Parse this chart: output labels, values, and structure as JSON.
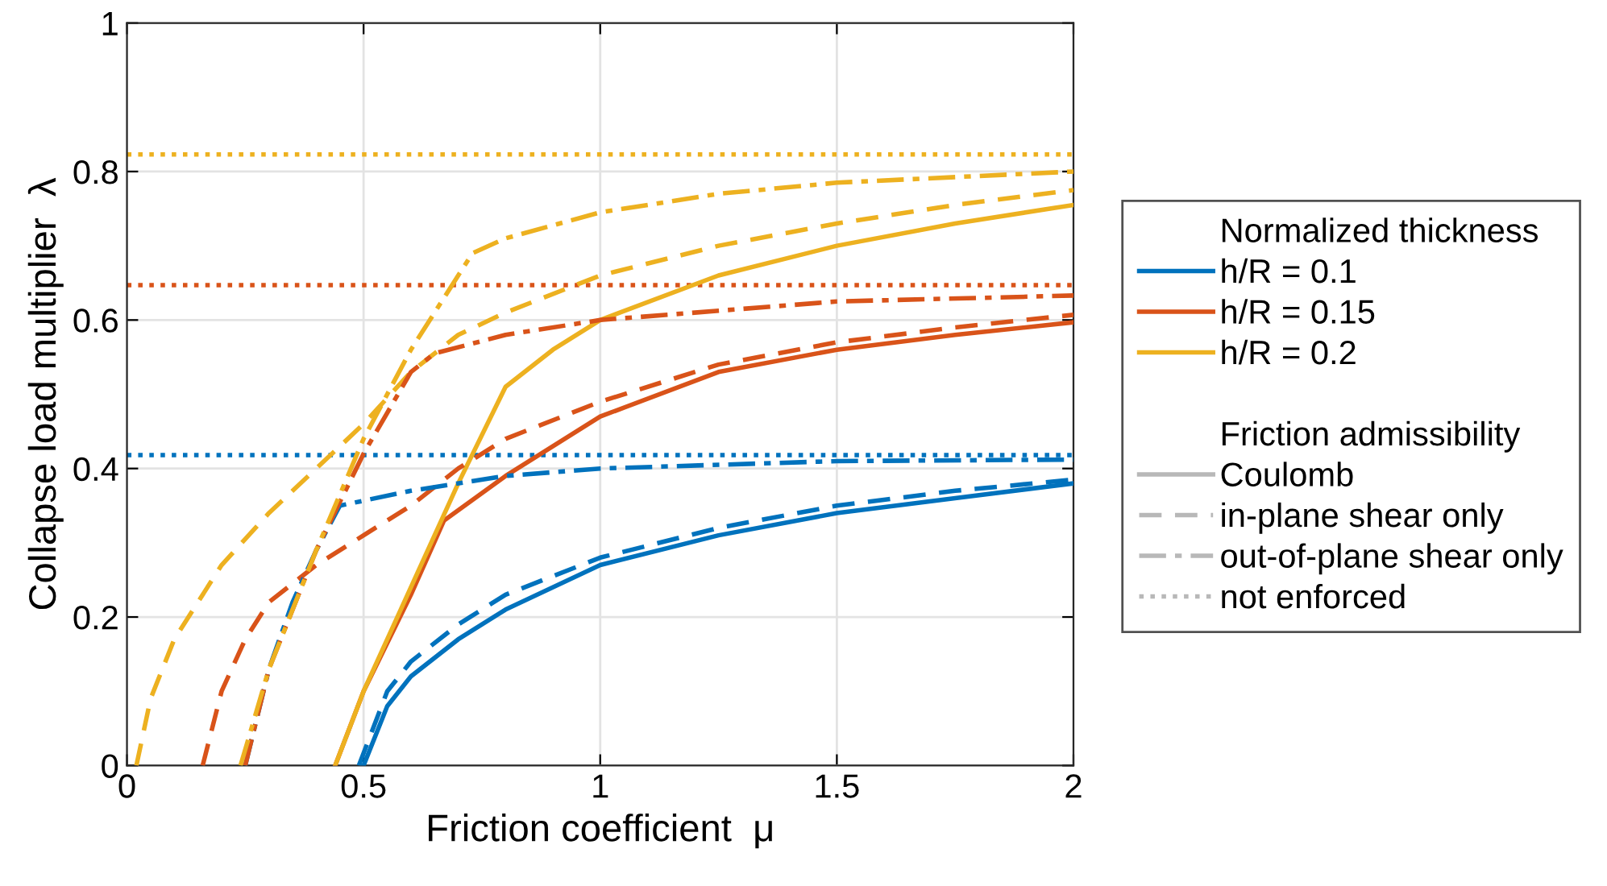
{
  "chart_data": {
    "type": "line",
    "xlabel": "Friction coefficient  μ",
    "ylabel": "Collapse load multiplier  λ",
    "xlim": [
      0,
      2
    ],
    "ylim": [
      0,
      1
    ],
    "xticks": [
      0,
      0.5,
      1,
      1.5,
      2
    ],
    "yticks": [
      0,
      0.2,
      0.4,
      0.6,
      0.8,
      1
    ],
    "grid": true,
    "legend": "right",
    "legend_title": "Normalized thickness",
    "series": [
      {
        "name": "h/R = 0.1",
        "color": "#0072bd",
        "line_style": "solid",
        "x": [
          0.5,
          0.55,
          0.6,
          0.7,
          0.8,
          1.0,
          1.25,
          1.5,
          1.75,
          2.0
        ],
        "values": [
          0,
          0.08,
          0.12,
          0.17,
          0.21,
          0.27,
          0.31,
          0.34,
          0.36,
          0.38
        ]
      },
      {
        "name": "h/R = 0.15",
        "color": "#d95319",
        "line_style": "solid",
        "x": [
          0.44,
          0.5,
          0.6,
          0.67,
          0.8,
          1.0,
          1.25,
          1.5,
          1.75,
          2.0
        ],
        "values": [
          0,
          0.1,
          0.23,
          0.33,
          0.39,
          0.47,
          0.53,
          0.56,
          0.58,
          0.597
        ]
      },
      {
        "name": "h/R = 0.2",
        "color": "#edb120",
        "line_style": "solid",
        "x": [
          0.44,
          0.5,
          0.6,
          0.7,
          0.8,
          0.9,
          1.0,
          1.25,
          1.5,
          1.75,
          2.0
        ],
        "values": [
          0,
          0.1,
          0.24,
          0.38,
          0.51,
          0.56,
          0.6,
          0.66,
          0.7,
          0.73,
          0.755
        ]
      },
      {
        "color": "#0072bd",
        "line_style": "dashed",
        "x": [
          0.49,
          0.55,
          0.6,
          0.7,
          0.8,
          1.0,
          1.25,
          1.5,
          1.75,
          2.0
        ],
        "values": [
          0,
          0.1,
          0.14,
          0.19,
          0.23,
          0.28,
          0.32,
          0.35,
          0.37,
          0.385
        ]
      },
      {
        "color": "#d95319",
        "line_style": "dashed",
        "x": [
          0.16,
          0.2,
          0.25,
          0.3,
          0.4,
          0.5,
          0.6,
          0.7,
          0.8,
          1.0,
          1.25,
          1.5,
          1.75,
          2.0
        ],
        "values": [
          0,
          0.1,
          0.17,
          0.22,
          0.27,
          0.31,
          0.35,
          0.4,
          0.44,
          0.49,
          0.54,
          0.57,
          0.59,
          0.607
        ]
      },
      {
        "color": "#edb120",
        "line_style": "dashed",
        "x": [
          0.02,
          0.05,
          0.1,
          0.2,
          0.3,
          0.4,
          0.5,
          0.6,
          0.7,
          0.8,
          1.0,
          1.25,
          1.5,
          1.75,
          2.0
        ],
        "values": [
          0,
          0.09,
          0.17,
          0.27,
          0.34,
          0.4,
          0.46,
          0.53,
          0.58,
          0.61,
          0.66,
          0.7,
          0.73,
          0.755,
          0.775
        ]
      },
      {
        "color": "#0072bd",
        "line_style": "dashdot",
        "x": [
          0.25,
          0.3,
          0.35,
          0.4,
          0.45,
          0.6,
          0.8,
          1.0,
          1.5,
          2.0
        ],
        "values": [
          0,
          0.13,
          0.22,
          0.29,
          0.35,
          0.37,
          0.39,
          0.4,
          0.41,
          0.412
        ]
      },
      {
        "color": "#d95319",
        "line_style": "dashdot",
        "x": [
          0.25,
          0.3,
          0.4,
          0.5,
          0.6,
          0.65,
          0.8,
          1.0,
          1.5,
          2.0
        ],
        "values": [
          0,
          0.13,
          0.29,
          0.42,
          0.53,
          0.555,
          0.58,
          0.6,
          0.625,
          0.633
        ]
      },
      {
        "color": "#edb120",
        "line_style": "dashdot",
        "x": [
          0.24,
          0.3,
          0.4,
          0.5,
          0.6,
          0.73,
          0.8,
          1.0,
          1.25,
          1.5,
          2.0
        ],
        "values": [
          0,
          0.13,
          0.29,
          0.44,
          0.56,
          0.69,
          0.71,
          0.745,
          0.77,
          0.785,
          0.8
        ]
      }
    ],
    "ref_lines": [
      {
        "axis": "y",
        "value": 0.418,
        "color": "#0072bd",
        "line_style": "dotted"
      },
      {
        "axis": "y",
        "value": 0.647,
        "color": "#d95319",
        "line_style": "dotted"
      },
      {
        "axis": "y",
        "value": 0.823,
        "color": "#edb120",
        "line_style": "dotted"
      }
    ],
    "annotations": [
      "Friction admissibility",
      "Coulomb",
      "in-plane shear only",
      "out-of-plane shear only",
      "not enforced"
    ]
  }
}
